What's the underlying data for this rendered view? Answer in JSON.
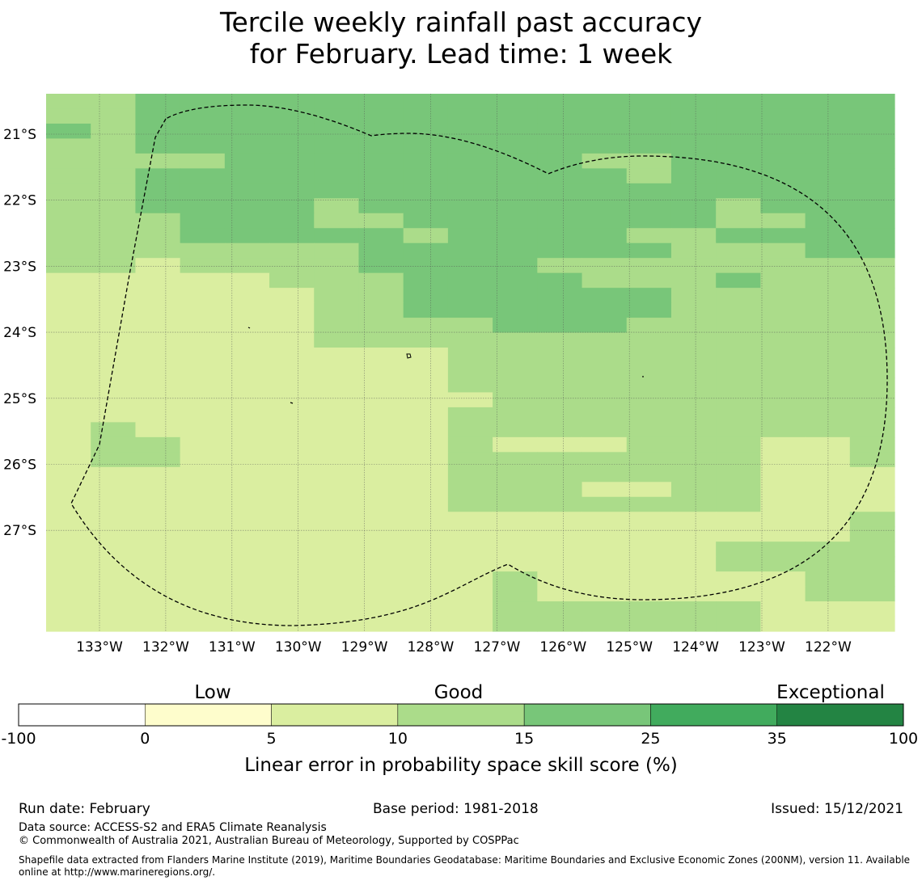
{
  "title": {
    "line1": "Tercile weekly rainfall past accuracy",
    "line2": "for February. Lead time: 1 week"
  },
  "map": {
    "lat_labels": [
      "21°S",
      "22°S",
      "23°S",
      "24°S",
      "25°S",
      "26°S",
      "27°S"
    ],
    "lon_labels": [
      "133°W",
      "132°W",
      "131°W",
      "130°W",
      "129°W",
      "128°W",
      "127°W",
      "126°W",
      "125°W",
      "124°W",
      "123°W",
      "122°W"
    ],
    "grid_class_rows": [
      "3344444444444444444",
      "3344444444444444444",
      "4344444444444444444",
      "3344444444444444444",
      "3333444444443344444",
      "3344444444444344444",
      "3344444444444444444",
      "3344443444444443444",
      "3334443344444443344",
      "3334444434444334444",
      "3333333444444433344",
      "3323333444433333333",
      "2222233344443334333",
      "2222223344444433333",
      "2222223344444433333",
      "2222223333444333333",
      "2222223333333333333",
      "2222222223333333333",
      "2222222223333333333",
      "2222222223333333333",
      "2222222222333333333",
      "2222222223333333333",
      "2322222223333333333",
      "2332222223222333223",
      "2332222223333333223",
      "2222222223333333222",
      "2222222223332233222",
      "2222222223333333222",
      "2222222222222222223",
      "2222222222222222223",
      "2222222222222223333",
      "2222222222222223333",
      "2222222222322222233",
      "2222222222322222233",
      "2222222222333333222",
      "2222222222333333222"
    ],
    "eez_outline": "dashed",
    "colors": {
      "class_0": "#ffffff",
      "class_1": "#fefdcc",
      "class_2": "#daeea0",
      "class_3": "#abdc8a",
      "class_4": "#78c679",
      "class_5": "#41ab5d",
      "class_6": "#238443"
    }
  },
  "legend": {
    "category_low": "Low",
    "category_good": "Good",
    "category_exceptional": "Exceptional",
    "ticks": [
      "-100",
      "0",
      "5",
      "10",
      "15",
      "25",
      "35",
      "100"
    ],
    "bin_colors": [
      "#ffffff",
      "#fefdcc",
      "#daeea0",
      "#abdc8a",
      "#78c679",
      "#41ab5d",
      "#238443"
    ],
    "label": "Linear error in probability space skill score (%)"
  },
  "footer": {
    "run_date": "Run date: February",
    "base_period": "Base period: 1981-2018",
    "issued": "Issued: 15/12/2021",
    "data_source": "Data source: ACCESS-S2 and ERA5 Climate Reanalysis",
    "copyright": "© Commonwealth of Australia 2021, Australian Bureau of Meteorology, Supported by COSPPac",
    "shapefile": "Shapefile data extracted from Flanders Marine Institute (2019), Maritime Boundaries Geodatabase: Maritime Boundaries and Exclusive Economic Zones (200NM), version 11. Available online at http://www.marineregions.org/."
  }
}
